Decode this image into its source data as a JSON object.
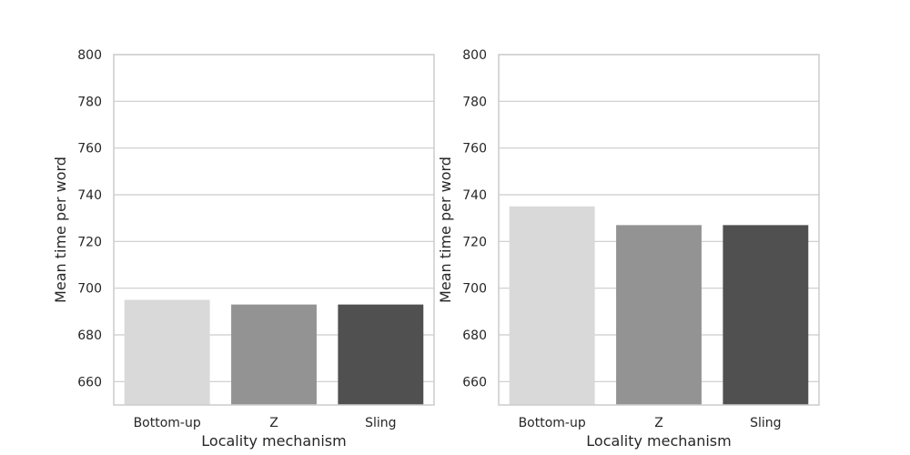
{
  "chart_data": [
    {
      "type": "bar",
      "categories": [
        "Bottom-up",
        "Z",
        "Sling"
      ],
      "values": [
        695,
        693,
        693
      ],
      "colors": [
        "#d9d9d9",
        "#939393",
        "#505050"
      ],
      "xlabel": "Locality mechanism",
      "ylabel": "Mean time per word",
      "ylim": [
        650,
        800
      ],
      "yticks": [
        660,
        680,
        700,
        720,
        740,
        760,
        780,
        800
      ],
      "grid": true
    },
    {
      "type": "bar",
      "categories": [
        "Bottom-up",
        "Z",
        "Sling"
      ],
      "values": [
        735,
        727,
        727
      ],
      "colors": [
        "#d9d9d9",
        "#939393",
        "#505050"
      ],
      "xlabel": "Locality mechanism",
      "ylabel": "Mean time per word",
      "ylim": [
        650,
        800
      ],
      "yticks": [
        660,
        680,
        700,
        720,
        740,
        760,
        780,
        800
      ],
      "grid": true
    }
  ]
}
